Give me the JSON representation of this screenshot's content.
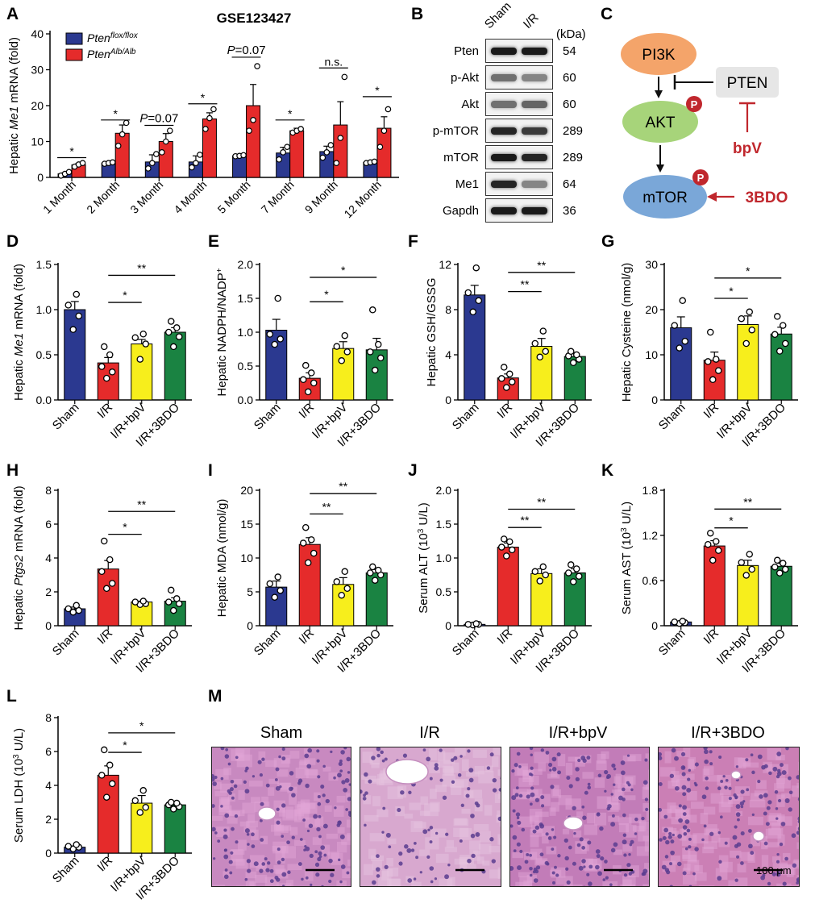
{
  "panel_letters": {
    "A": "A",
    "B": "B",
    "C": "C",
    "D": "D",
    "E": "E",
    "F": "F",
    "G": "G",
    "H": "H",
    "I": "I",
    "J": "J",
    "K": "K",
    "L": "L",
    "M": "M"
  },
  "colors": {
    "sham": "#2b3990",
    "ir": "#e52b2b",
    "bpv": "#f7ee1c",
    "bdo": "#1a8342",
    "ctrl_A": "#2b3990",
    "ko_A": "#e52b2b",
    "pi3k": "#f4a46a",
    "akt": "#a7d47a",
    "mtor": "#7aa7d8",
    "pten": "#e6e6e6",
    "inhib": "#c0272d",
    "p_badge": "#c0272d",
    "he_pink": "#d07fb4",
    "he_purple": "#7a4d9c"
  },
  "chart_data": [
    {
      "id": "A",
      "type": "bar",
      "title": "GSE123427",
      "ylabel_parts": [
        "Hepatic ",
        "Me1",
        " mRNA (fold)"
      ],
      "ylim": [
        0,
        40
      ],
      "yticks": [
        0,
        10,
        20,
        30,
        40
      ],
      "categories": [
        "1 Month",
        "2 Month",
        "3 Month",
        "4 Month",
        "5 Month",
        "7 Month",
        "9 Month",
        "12 Month"
      ],
      "legend": [
        {
          "base": "Pten",
          "sup": "flox/flox"
        },
        {
          "base": "Pten",
          "sup": "Alb/Alb"
        }
      ],
      "series": [
        {
          "values": [
            1.0,
            4.0,
            4.3,
            4.3,
            6.0,
            6.8,
            7.2,
            4.2
          ],
          "err": [
            0.3,
            0.3,
            2.0,
            1.7,
            0.3,
            1.6,
            1.5,
            0.2
          ],
          "points": [
            [
              0.5,
              1.0,
              1.5
            ],
            [
              3.8,
              4.0,
              4.2
            ],
            [
              2.5,
              4.0,
              6.5
            ],
            [
              2.8,
              4.0,
              6.3
            ],
            [
              5.9,
              6.0,
              6.2
            ],
            [
              5.0,
              7.0,
              8.5
            ],
            [
              5.5,
              7.0,
              9.0
            ],
            [
              4.0,
              4.2,
              4.4
            ]
          ]
        },
        {
          "values": [
            3.5,
            12.3,
            10.0,
            16.3,
            20.0,
            13.0,
            14.6,
            13.7
          ],
          "err": [
            0.4,
            2.3,
            2.2,
            1.7,
            5.9,
            0.7,
            6.5,
            3.2
          ],
          "points": [
            [
              3.0,
              3.6,
              4.0
            ],
            [
              8.8,
              12.0,
              15.2
            ],
            [
              7.0,
              10.0,
              13.0
            ],
            [
              13.5,
              16.5,
              19.0
            ],
            [
              13.0,
              16.0,
              31.0
            ],
            [
              12.5,
              13.0,
              13.5
            ],
            [
              4.0,
              11.0,
              28.0
            ],
            [
              8.5,
              13.0,
              19.0
            ]
          ]
        }
      ],
      "annotations": [
        {
          "cat": 0,
          "text": "*",
          "y": 5.5
        },
        {
          "cat": 1,
          "text": "*",
          "y": 16.0
        },
        {
          "cat": 2,
          "pre": "P",
          "text": "=0.07",
          "y": 14.5
        },
        {
          "cat": 3,
          "text": "*",
          "y": 20.5
        },
        {
          "cat": 4,
          "pre": "P",
          "text": "=0.07",
          "y": 33.5
        },
        {
          "cat": 5,
          "text": "*",
          "y": 16.0
        },
        {
          "cat": 6,
          "text": "n.s.",
          "y": 30.5
        },
        {
          "cat": 7,
          "text": "*",
          "y": 22.5
        }
      ]
    },
    {
      "id": "D",
      "type": "bar",
      "ylabel_parts": [
        "Hepatic ",
        "Me1",
        " mRNA (fold)"
      ],
      "ylim": [
        0,
        1.5
      ],
      "yticks": [
        0.0,
        0.5,
        1.0,
        1.5
      ],
      "ytick_labels": [
        "0.0",
        "0.5",
        "1.0",
        "1.5"
      ],
      "categories": [
        "Sham",
        "I/R",
        "I/R+bpV",
        "I/R+3BDO"
      ],
      "values": [
        1.0,
        0.41,
        0.62,
        0.75
      ],
      "err": [
        0.09,
        0.06,
        0.05,
        0.05
      ],
      "points": [
        [
          0.78,
          0.93,
          1.05,
          1.17
        ],
        [
          0.24,
          0.31,
          0.37,
          0.5,
          0.59
        ],
        [
          0.45,
          0.62,
          0.69,
          0.73
        ],
        [
          0.59,
          0.7,
          0.75,
          0.8,
          0.87
        ]
      ],
      "sig": [
        {
          "from": 1,
          "to": 2,
          "y": 1.08,
          "text": "*"
        },
        {
          "from": 1,
          "to": 3,
          "y": 1.38,
          "text": "**"
        }
      ]
    },
    {
      "id": "E",
      "type": "bar",
      "ylabel_parts": [
        "Hepatic NADPH/NADP",
        "+",
        ""
      ],
      "ylabel_sup_index": 1,
      "ylim": [
        0,
        2.0
      ],
      "yticks": [
        0.0,
        0.5,
        1.0,
        1.5,
        2.0
      ],
      "ytick_labels": [
        "0.0",
        "0.5",
        "1.0",
        "1.5",
        "2.0"
      ],
      "categories": [
        "Sham",
        "I/R",
        "I/R+bpV",
        "I/R+3BDO"
      ],
      "values": [
        1.03,
        0.32,
        0.76,
        0.74
      ],
      "err": [
        0.16,
        0.08,
        0.1,
        0.17
      ],
      "points": [
        [
          0.82,
          0.9,
          0.97,
          1.5
        ],
        [
          0.12,
          0.25,
          0.3,
          0.4,
          0.51
        ],
        [
          0.58,
          0.71,
          0.79,
          0.95
        ],
        [
          0.44,
          0.62,
          0.71,
          0.82,
          1.33
        ]
      ],
      "sig": [
        {
          "from": 1,
          "to": 2,
          "y": 1.45,
          "text": "*"
        },
        {
          "from": 1,
          "to": 3,
          "y": 1.81,
          "text": "*"
        }
      ]
    },
    {
      "id": "F",
      "type": "bar",
      "ylabel_parts": [
        "Hepatic GSH/GSSG"
      ],
      "ylim": [
        0,
        12
      ],
      "yticks": [
        0,
        4,
        8,
        12
      ],
      "ytick_labels": [
        "0",
        "4",
        "8",
        "12"
      ],
      "categories": [
        "Sham",
        "I/R",
        "I/R+bpV",
        "I/R+3BDO"
      ],
      "values": [
        9.3,
        1.95,
        4.75,
        3.85
      ],
      "err": [
        0.85,
        0.35,
        0.7,
        0.25
      ],
      "points": [
        [
          7.8,
          8.8,
          9.5,
          11.7
        ],
        [
          1.1,
          1.6,
          1.9,
          2.3,
          2.9
        ],
        [
          3.8,
          4.3,
          5.0,
          6.1
        ],
        [
          3.3,
          3.6,
          3.9,
          4.0,
          4.3
        ]
      ],
      "sig": [
        {
          "from": 1,
          "to": 2,
          "y": 9.6,
          "text": "**"
        },
        {
          "from": 1,
          "to": 3,
          "y": 11.3,
          "text": "**"
        }
      ]
    },
    {
      "id": "G",
      "type": "bar",
      "ylabel_parts": [
        "Hepatic Cysteine (nmol/g)"
      ],
      "ylim": [
        0,
        30
      ],
      "yticks": [
        0,
        10,
        20,
        30
      ],
      "ytick_labels": [
        "0",
        "10",
        "20",
        "30"
      ],
      "categories": [
        "Sham",
        "I/R",
        "I/R+bpV",
        "I/R+3BDO"
      ],
      "values": [
        16.0,
        8.8,
        16.7,
        14.6
      ],
      "err": [
        2.4,
        1.8,
        1.9,
        1.5
      ],
      "points": [
        [
          11.5,
          13.0,
          16.5,
          22.0
        ],
        [
          4.5,
          6.5,
          8.5,
          9.0,
          15.0
        ],
        [
          12.5,
          15.5,
          18.0,
          19.5
        ],
        [
          10.8,
          12.5,
          14.5,
          16.5,
          18.5
        ]
      ],
      "sig": [
        {
          "from": 1,
          "to": 2,
          "y": 22.5,
          "text": "*"
        },
        {
          "from": 1,
          "to": 3,
          "y": 27.0,
          "text": "*"
        }
      ]
    },
    {
      "id": "H",
      "type": "bar",
      "ylabel_parts": [
        "Hepatic ",
        "Ptgs2",
        " mRNA (fold)"
      ],
      "ylim": [
        0,
        8
      ],
      "yticks": [
        0,
        2,
        4,
        6,
        8
      ],
      "ytick_labels": [
        "0",
        "2",
        "4",
        "6",
        "8"
      ],
      "categories": [
        "Sham",
        "I/R",
        "I/R+bpV",
        "I/R+3BDO"
      ],
      "values": [
        1.0,
        3.35,
        1.4,
        1.45
      ],
      "err": [
        0.1,
        0.5,
        0.05,
        0.2
      ],
      "points": [
        [
          0.8,
          0.9,
          1.0,
          1.2
        ],
        [
          2.2,
          2.5,
          3.2,
          3.9,
          5.0
        ],
        [
          1.25,
          1.3,
          1.4,
          1.45
        ],
        [
          0.9,
          1.3,
          1.4,
          1.6,
          2.1
        ]
      ],
      "sig": [
        {
          "from": 1,
          "to": 2,
          "y": 5.4,
          "text": "*"
        },
        {
          "from": 1,
          "to": 3,
          "y": 6.75,
          "text": "**"
        }
      ]
    },
    {
      "id": "I",
      "type": "bar",
      "ylabel_parts": [
        "Hepatic MDA (nmol/g)"
      ],
      "ylim": [
        0,
        20
      ],
      "yticks": [
        0,
        5,
        10,
        15,
        20
      ],
      "ytick_labels": [
        "0",
        "5",
        "10",
        "15",
        "20"
      ],
      "categories": [
        "Sham",
        "I/R",
        "I/R+bpV",
        "I/R+3BDO"
      ],
      "values": [
        5.7,
        12.0,
        6.1,
        7.8
      ],
      "err": [
        0.9,
        1.0,
        1.0,
        0.5
      ],
      "points": [
        [
          4.2,
          5.2,
          6.2,
          7.2
        ],
        [
          9.3,
          10.7,
          12.2,
          12.7,
          14.5
        ],
        [
          4.5,
          5.5,
          6.5,
          8.0
        ],
        [
          6.7,
          7.5,
          7.8,
          8.2,
          8.7
        ]
      ],
      "sig": [
        {
          "from": 1,
          "to": 2,
          "y": 16.5,
          "text": "**"
        },
        {
          "from": 1,
          "to": 3,
          "y": 19.5,
          "text": "**"
        }
      ]
    },
    {
      "id": "J",
      "type": "bar",
      "ylabel_parts": [
        "Serum ALT (10",
        "3",
        " U/L)"
      ],
      "ylabel_sup_index": 1,
      "ylim": [
        0,
        2.0
      ],
      "yticks": [
        0.0,
        0.5,
        1.0,
        1.5,
        2.0
      ],
      "ytick_labels": [
        "0",
        "0.5",
        "1.0",
        "1.5",
        "2.0"
      ],
      "categories": [
        "Sham",
        "I/R",
        "I/R+bpV",
        "I/R+3BDO"
      ],
      "values": [
        0.02,
        1.16,
        0.77,
        0.78
      ],
      "err": [
        0.01,
        0.06,
        0.07,
        0.06
      ],
      "points": [
        [
          0.01,
          0.02,
          0.02,
          0.03
        ],
        [
          1.03,
          1.12,
          1.16,
          1.24,
          1.28
        ],
        [
          0.66,
          0.75,
          0.8,
          0.87
        ],
        [
          0.65,
          0.73,
          0.78,
          0.84,
          0.9
        ]
      ],
      "sig": [
        {
          "from": 1,
          "to": 2,
          "y": 1.45,
          "text": "**"
        },
        {
          "from": 1,
          "to": 3,
          "y": 1.72,
          "text": "**"
        }
      ]
    },
    {
      "id": "K",
      "type": "bar",
      "ylabel_parts": [
        "Serum AST (10",
        "3",
        " U/L)"
      ],
      "ylabel_sup_index": 1,
      "ylim": [
        0,
        1.8
      ],
      "yticks": [
        0,
        0.6,
        1.2,
        1.8
      ],
      "ytick_labels": [
        "0",
        "0.6",
        "1.2",
        "1.8"
      ],
      "categories": [
        "Sham",
        "I/R",
        "I/R+bpV",
        "I/R+3BDO"
      ],
      "values": [
        0.05,
        1.06,
        0.8,
        0.79
      ],
      "err": [
        0.01,
        0.07,
        0.07,
        0.04
      ],
      "points": [
        [
          0.03,
          0.04,
          0.05,
          0.06
        ],
        [
          0.87,
          1.0,
          1.08,
          1.12,
          1.23
        ],
        [
          0.67,
          0.75,
          0.84,
          0.95
        ],
        [
          0.7,
          0.75,
          0.78,
          0.83,
          0.87
        ]
      ],
      "sig": [
        {
          "from": 1,
          "to": 2,
          "y": 1.3,
          "text": "*"
        },
        {
          "from": 1,
          "to": 3,
          "y": 1.55,
          "text": "**"
        }
      ]
    },
    {
      "id": "L",
      "type": "bar",
      "ylabel_parts": [
        "Serum LDH (10",
        "3",
        " U/L)"
      ],
      "ylabel_sup_index": 1,
      "ylim": [
        0,
        8
      ],
      "yticks": [
        0,
        2,
        4,
        6,
        8
      ],
      "ytick_labels": [
        "0",
        "2",
        "4",
        "6",
        "8"
      ],
      "categories": [
        "Sham",
        "I/R",
        "I/R+bpV",
        "I/R+3BDO"
      ],
      "values": [
        0.35,
        4.6,
        2.95,
        2.85
      ],
      "err": [
        0.07,
        0.55,
        0.45,
        0.1
      ],
      "points": [
        [
          0.25,
          0.35,
          0.4,
          0.5
        ],
        [
          3.3,
          4.1,
          4.6,
          5.2,
          6.1
        ],
        [
          2.4,
          2.7,
          3.1,
          3.7
        ],
        [
          2.6,
          2.75,
          2.85,
          2.95,
          3.0
        ]
      ],
      "sig": [
        {
          "from": 1,
          "to": 2,
          "y": 5.95,
          "text": "*"
        },
        {
          "from": 1,
          "to": 3,
          "y": 7.1,
          "text": "*"
        }
      ]
    }
  ],
  "western_blot": {
    "columns": [
      "Sham",
      "I/R"
    ],
    "kda_header": "(kDa)",
    "rows": [
      {
        "label": "Pten",
        "kda": "54",
        "lane1": 0.95,
        "lane2": 0.95
      },
      {
        "label": "p-Akt",
        "kda": "60",
        "lane1": 0.55,
        "lane2": 0.45
      },
      {
        "label": "Akt",
        "kda": "60",
        "lane1": 0.55,
        "lane2": 0.6
      },
      {
        "label": "p-mTOR",
        "kda": "289",
        "lane1": 0.9,
        "lane2": 0.8
      },
      {
        "label": "mTOR",
        "kda": "289",
        "lane1": 0.95,
        "lane2": 0.9
      },
      {
        "label": "Me1",
        "kda": "64",
        "lane1": 0.9,
        "lane2": 0.45
      },
      {
        "label": "Gapdh",
        "kda": "36",
        "lane1": 0.95,
        "lane2": 0.95
      }
    ]
  },
  "pathway": {
    "pi3k": "PI3K",
    "pten": "PTEN",
    "akt": "AKT",
    "mtor": "mTOR",
    "bpv": "bpV",
    "bdo": "3BDO",
    "p": "P"
  },
  "histology": {
    "titles": [
      "Sham",
      "I/R",
      "I/R+bpV",
      "I/R+3BDO"
    ],
    "scale_label": "100 μm"
  }
}
